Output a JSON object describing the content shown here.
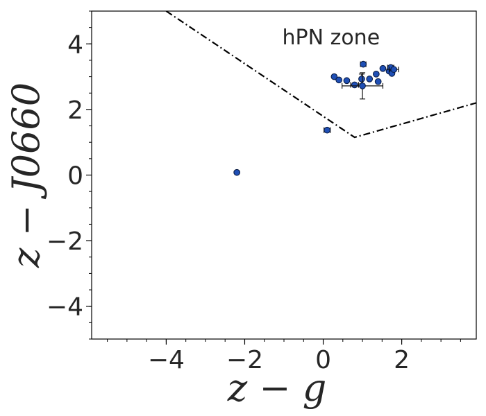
{
  "chart_data": {
    "type": "scatter",
    "title": "",
    "xlabel": "z − g",
    "ylabel": "z − J0660",
    "xlim": [
      -5.9,
      3.9
    ],
    "ylim": [
      -5.0,
      5.0
    ],
    "x_major_ticks": [
      -4,
      -2,
      0,
      2
    ],
    "x_tick_labels": [
      "−4",
      "−2",
      "0",
      "2"
    ],
    "y_major_ticks": [
      -4,
      -2,
      0,
      2,
      4
    ],
    "y_tick_labels": [
      "−4",
      "−2",
      "0",
      "2",
      "4"
    ],
    "x_minor_step": 0.5,
    "y_minor_step": 0.5,
    "grid": false,
    "legend": "none",
    "annotation": {
      "text": "hPN zone",
      "x": 0.2,
      "y": 4.2
    },
    "boundary_line": {
      "style": "dash-dot",
      "color": "#000000",
      "points": [
        [
          -4.0,
          5.0
        ],
        [
          0.8,
          1.15
        ],
        [
          3.9,
          2.2
        ]
      ]
    },
    "marker_fill": "#1f4fb5",
    "marker_edge": "#0a1c44",
    "points": [
      {
        "x": -2.2,
        "y": 0.08
      },
      {
        "x": 0.1,
        "y": 1.37,
        "xerr": 0.08
      },
      {
        "x": 1.02,
        "y": 3.38,
        "xerr": 0.07
      },
      {
        "x": 0.28,
        "y": 3.0
      },
      {
        "x": 0.4,
        "y": 2.9
      },
      {
        "x": 0.6,
        "y": 2.88
      },
      {
        "x": 0.8,
        "y": 2.75,
        "xerr": 0.1
      },
      {
        "x": 0.98,
        "y": 2.93,
        "yerr": 0.15
      },
      {
        "x": 1.0,
        "y": 2.72,
        "xerr": 0.52,
        "yerr": 0.4
      },
      {
        "x": 1.18,
        "y": 2.93
      },
      {
        "x": 1.35,
        "y": 3.08
      },
      {
        "x": 1.4,
        "y": 2.85
      },
      {
        "x": 1.52,
        "y": 3.25
      },
      {
        "x": 1.68,
        "y": 3.17
      },
      {
        "x": 1.72,
        "y": 3.28,
        "xerr": 0.08
      },
      {
        "x": 1.75,
        "y": 3.1
      },
      {
        "x": 1.8,
        "y": 3.22,
        "xerr": 0.12
      }
    ]
  }
}
